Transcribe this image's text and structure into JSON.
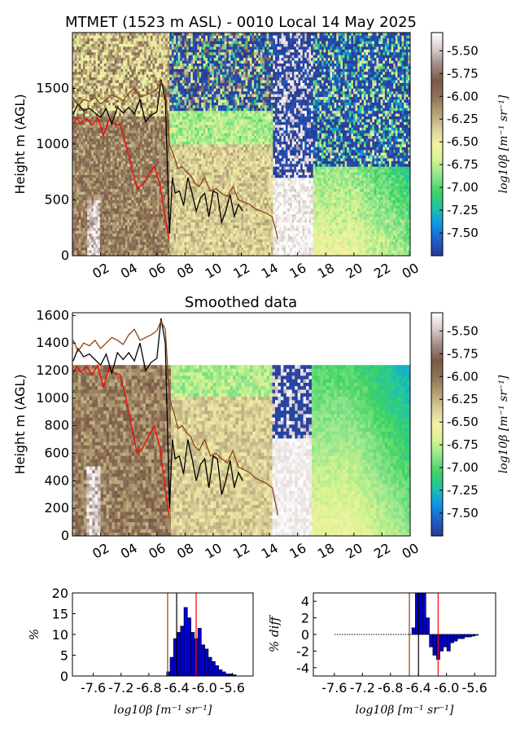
{
  "colors": {
    "colormap": [
      "#2b3a93",
      "#1e5fc8",
      "#0f96e6",
      "#1fc3a8",
      "#41d363",
      "#8ee58e",
      "#d5f28f",
      "#f7f2a7",
      "#d6cd98",
      "#b29f75",
      "#8e7256",
      "#7a5a4a",
      "#a48c86",
      "#d9cdcb",
      "#ffffff"
    ],
    "red_line": "#ff0000",
    "black_line": "#000000",
    "brown_line": "#8b4513",
    "hist_bar": "#0000cc"
  },
  "chart_data": [
    {
      "type": "heatmap",
      "title": "MTMET (1523 m ASL) - 0010 Local 14 May 2025",
      "xlabel": "",
      "ylabel": "Height m (AGL)",
      "ylim": [
        0,
        2000
      ],
      "xlim": [
        0,
        24
      ],
      "x_ticks": [
        "02",
        "04",
        "06",
        "08",
        "10",
        "12",
        "14",
        "16",
        "18",
        "20",
        "22",
        "00"
      ],
      "y_ticks": [
        "0",
        "500",
        "1000",
        "1500"
      ],
      "colorbar": {
        "label": "log10β [m⁻¹ sr⁻¹]",
        "range": [
          -7.75,
          -5.3
        ],
        "ticks": [
          "-5.50",
          "-5.75",
          "-6.00",
          "-6.25",
          "-6.50",
          "-6.75",
          "-7.00",
          "-7.25",
          "-7.50"
        ]
      },
      "series": [
        {
          "color": "red",
          "x": [
            0.05,
            0.3,
            0.6,
            1.0,
            1.4,
            1.8,
            2.2,
            2.6,
            3.0,
            3.4,
            3.8,
            4.2,
            4.6,
            5.0,
            5.4,
            5.8,
            6.2,
            6.5,
            6.7,
            6.85
          ],
          "y": [
            1180,
            1230,
            1190,
            1230,
            1170,
            1240,
            1080,
            1220,
            1180,
            1170,
            1000,
            800,
            600,
            640,
            720,
            800,
            650,
            420,
            260,
            150
          ]
        },
        {
          "color": "black",
          "x": [
            0.05,
            0.4,
            0.8,
            1.2,
            1.6,
            2.0,
            2.4,
            2.8,
            3.2,
            3.6,
            4.0,
            4.4,
            4.8,
            5.2,
            5.6,
            6.0,
            6.3,
            6.6,
            6.9,
            7.1,
            7.3,
            7.6,
            7.9,
            8.2,
            8.5,
            8.8,
            9.1,
            9.4,
            9.7,
            10.0,
            10.3,
            10.6,
            10.9,
            11.2,
            11.5,
            11.8,
            12.1
          ],
          "y": [
            1270,
            1360,
            1300,
            1320,
            1280,
            1240,
            1320,
            1180,
            1330,
            1280,
            1330,
            1270,
            1400,
            1200,
            1260,
            1290,
            1580,
            1400,
            200,
            700,
            560,
            580,
            450,
            700,
            560,
            400,
            520,
            560,
            350,
            580,
            560,
            300,
            400,
            550,
            350,
            460,
            400
          ]
        },
        {
          "color": "brown",
          "x": [
            0.05,
            0.4,
            0.8,
            1.2,
            1.6,
            2.0,
            2.4,
            2.8,
            3.2,
            3.6,
            4.0,
            4.4,
            4.8,
            5.2,
            5.6,
            6.0,
            6.3,
            6.6,
            6.9,
            7.2,
            7.5,
            7.8,
            8.1,
            8.4,
            8.7,
            9.0,
            9.4,
            9.8,
            10.2,
            10.6,
            11.0,
            11.4,
            11.8,
            12.2,
            12.6,
            13.0,
            13.4,
            13.8,
            14.2,
            14.6
          ],
          "y": [
            1420,
            1340,
            1400,
            1380,
            1420,
            1360,
            1400,
            1440,
            1420,
            1390,
            1460,
            1500,
            1420,
            1440,
            1460,
            1490,
            1560,
            1500,
            1000,
            900,
            780,
            800,
            750,
            720,
            650,
            620,
            700,
            580,
            600,
            560,
            530,
            620,
            500,
            480,
            460,
            420,
            400,
            380,
            350,
            150
          ]
        }
      ]
    },
    {
      "type": "heatmap",
      "title": "Smoothed data",
      "ylabel": "Height m (AGL)",
      "ylim": [
        0,
        1620
      ],
      "xlim": [
        0,
        24
      ],
      "x_ticks": [
        "02",
        "04",
        "06",
        "08",
        "10",
        "12",
        "14",
        "16",
        "18",
        "20",
        "22",
        "00"
      ],
      "y_ticks": [
        "0",
        "200",
        "400",
        "600",
        "800",
        "1000",
        "1200",
        "1400",
        "1600"
      ],
      "colorbar": {
        "label": "log10β [m⁻¹ sr⁻¹]",
        "range": [
          -7.75,
          -5.3
        ],
        "ticks": [
          "-5.50",
          "-5.75",
          "-6.00",
          "-6.25",
          "-6.50",
          "-6.75",
          "-7.00",
          "-7.25",
          "-7.50"
        ]
      }
    },
    {
      "type": "bar",
      "ylabel": "%",
      "xlabel": "log10β [m⁻¹ sr⁻¹]",
      "xlim": [
        -7.9,
        -5.3
      ],
      "ylim": [
        0,
        20
      ],
      "x_ticks": [
        "-7.6",
        "-7.2",
        "-6.8",
        "-6.4",
        "-6.0",
        "-5.6"
      ],
      "y_ticks": [
        "0",
        "5",
        "10",
        "15",
        "20"
      ],
      "x": [
        -6.52,
        -6.47,
        -6.42,
        -6.37,
        -6.32,
        -6.27,
        -6.22,
        -6.17,
        -6.12,
        -6.07,
        -6.02,
        -5.97,
        -5.92,
        -5.87,
        -5.82,
        -5.77,
        -5.72,
        -5.67,
        -5.62,
        -5.57
      ],
      "values": [
        1.0,
        4.5,
        9.0,
        10.5,
        12.0,
        16.5,
        14.0,
        10.5,
        9.0,
        11.5,
        7.5,
        6.5,
        4.5,
        3.5,
        2.5,
        1.5,
        1.0,
        0.5,
        0.5,
        0.3
      ],
      "vlines": [
        {
          "x": -6.53,
          "color": "brown"
        },
        {
          "x": -6.4,
          "color": "black"
        },
        {
          "x": -6.12,
          "color": "red"
        }
      ]
    },
    {
      "type": "bar",
      "ylabel": "% diff",
      "xlabel": "log10β [m⁻¹ sr⁻¹]",
      "xlim": [
        -7.9,
        -5.3
      ],
      "ylim": [
        -5,
        5
      ],
      "x_ticks": [
        "-7.6",
        "-7.2",
        "-6.8",
        "-6.4",
        "-6.0",
        "-5.6"
      ],
      "y_ticks": [
        "-4",
        "-2",
        "0",
        "2",
        "4"
      ],
      "x": [
        -6.47,
        -6.42,
        -6.37,
        -6.32,
        -6.27,
        -6.22,
        -6.17,
        -6.12,
        -6.07,
        -6.02,
        -5.97,
        -5.92,
        -5.87,
        -5.82,
        -5.77,
        -5.72,
        -5.67,
        -5.62,
        -5.57
      ],
      "values": [
        0.8,
        6.0,
        6.0,
        5.0,
        2.0,
        -1.5,
        -2.5,
        -3.0,
        -2.0,
        -1.5,
        -2.0,
        -1.0,
        -0.8,
        -0.5,
        -0.5,
        -0.3,
        -0.3,
        -0.2,
        -0.1
      ],
      "vlines": [
        {
          "x": -6.53,
          "color": "brown"
        },
        {
          "x": -6.4,
          "color": "black"
        },
        {
          "x": -6.12,
          "color": "red"
        }
      ]
    }
  ]
}
